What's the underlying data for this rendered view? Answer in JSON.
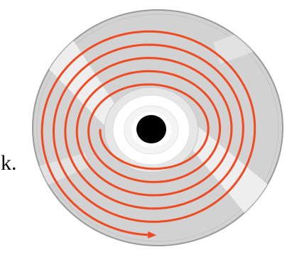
{
  "caption": {
    "fragment": "k."
  },
  "colors": {
    "background": "#ffffff",
    "disc_fill": "#d2d2d2",
    "disc_rim": "#9a9a9a",
    "disc_highlight": "#f3f3f3",
    "hub_ring": "#ffffff",
    "center_hole": "#000000",
    "spiral_track": "#ee4b22",
    "text": "#000000"
  },
  "icons": {
    "disc": "optical-disc-icon",
    "track": "spiral-track-path",
    "arrow": "arrowhead-icon"
  }
}
